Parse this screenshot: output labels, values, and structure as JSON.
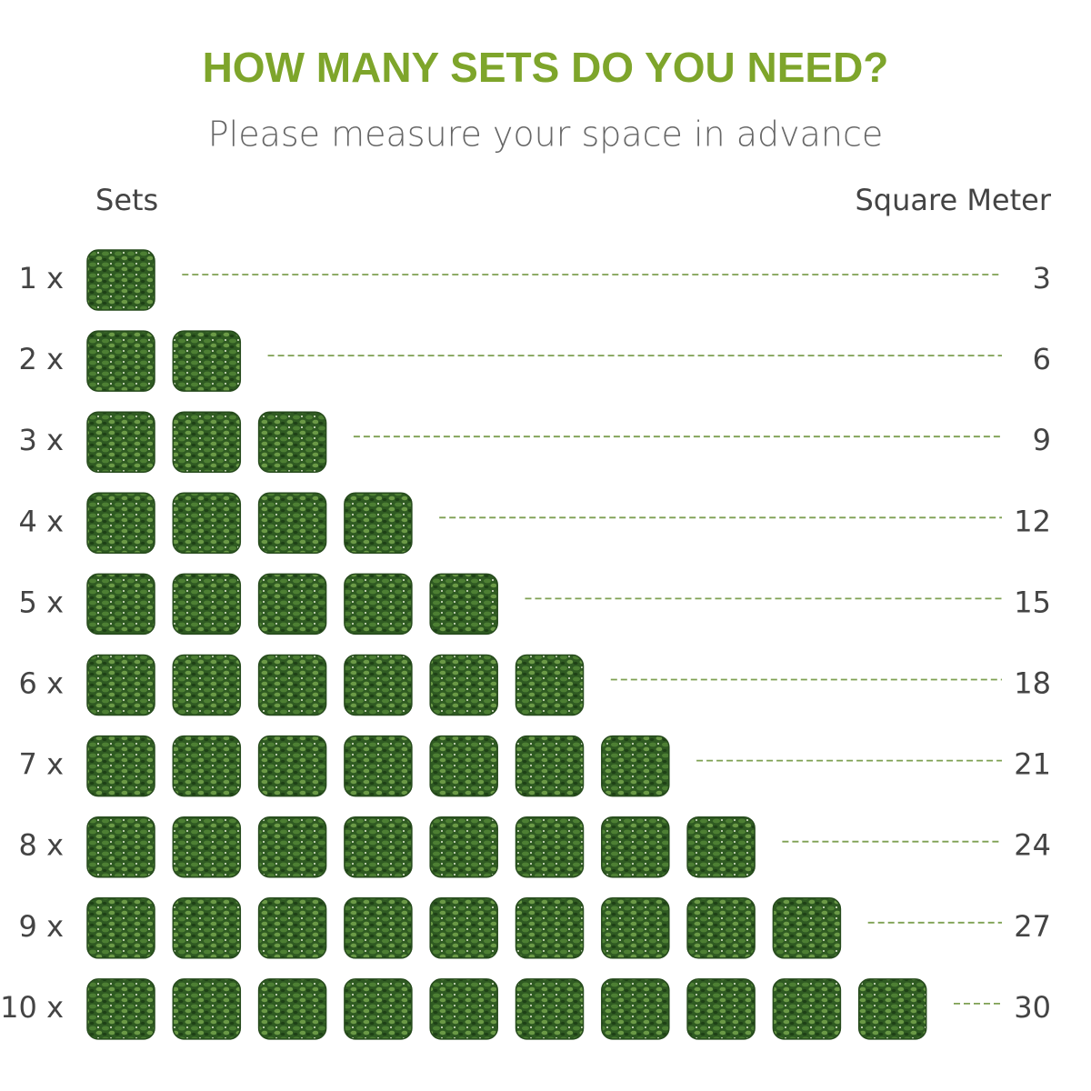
{
  "header": {
    "title": "HOW MANY SETS DO YOU NEED?",
    "subtitle": "Please measure your space in advance"
  },
  "columns": {
    "left": "Sets",
    "right": "Square Meter"
  },
  "rows": [
    {
      "label": "1 x",
      "area": 3
    },
    {
      "label": "2 x",
      "area": 6
    },
    {
      "label": "3 x",
      "area": 9
    },
    {
      "label": "4 x",
      "area": 12
    },
    {
      "label": "5 x",
      "area": 15
    },
    {
      "label": "6 x",
      "area": 18
    },
    {
      "label": "7 x",
      "area": 21
    },
    {
      "label": "8 x",
      "area": 24
    },
    {
      "label": "9 x",
      "area": 27
    },
    {
      "label": "10 x",
      "area": 30
    }
  ]
}
